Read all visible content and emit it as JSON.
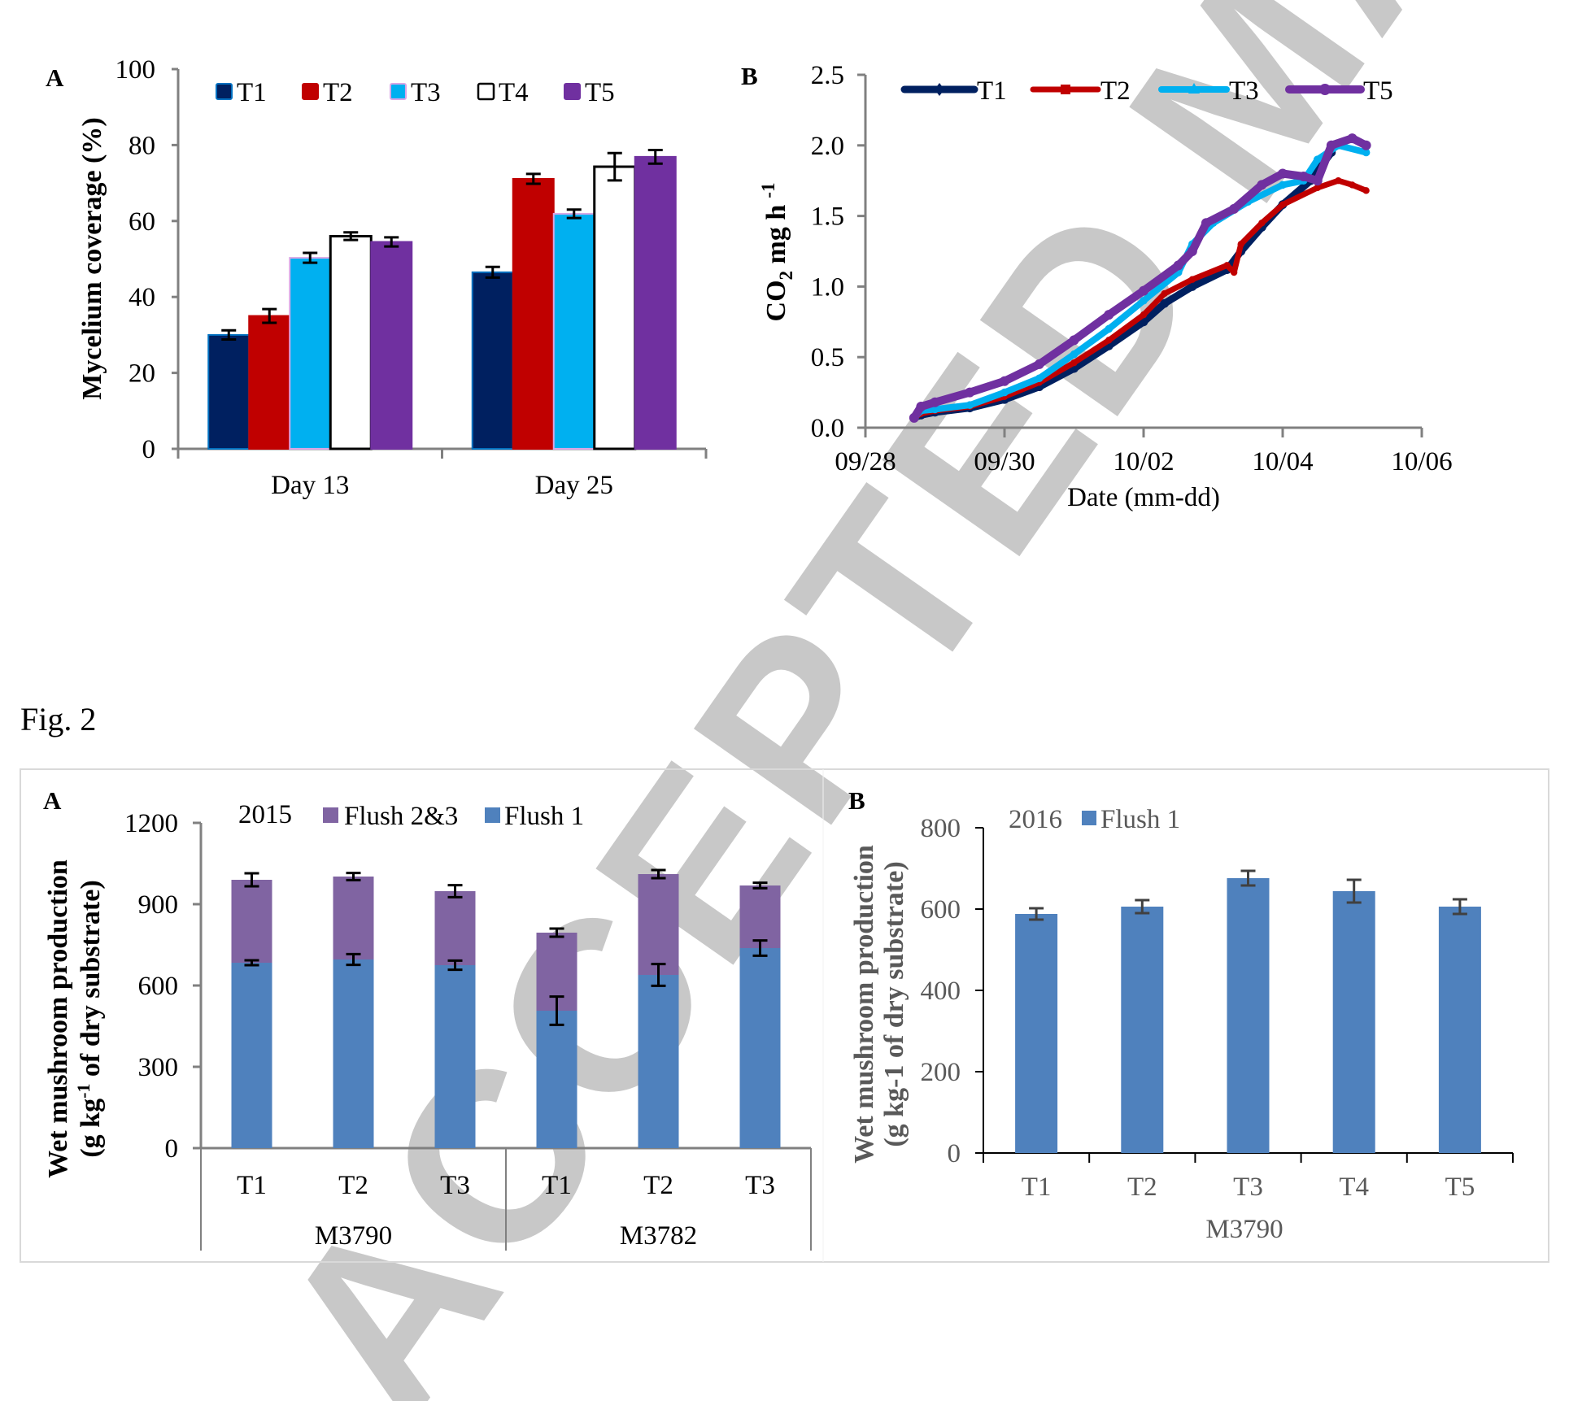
{
  "fig_label": "Fig. 2",
  "watermark_text": "ACCEPTED MANUSCRIPT",
  "colors": {
    "T1": "#002060",
    "T1_edge": "#0070c0",
    "T2": "#c00000",
    "T3": "#00b0f0",
    "T3_edge": "#d9a6e6",
    "T4": "#ffffff",
    "T5": "#7030a0",
    "flush1": "#4f81bd",
    "flush23": "#8064a2",
    "axis": "#808080",
    "watermark": "#c8c8c8"
  },
  "chart_data": [
    {
      "id": "top-A",
      "panel": "A",
      "type": "bar",
      "title": "",
      "xlabel": "",
      "ylabel": "Mycelium coverage (%)",
      "ylim": [
        0,
        100
      ],
      "yticks": [
        "0",
        "20",
        "40",
        "60",
        "80",
        "100"
      ],
      "ytick_values": [
        0,
        20,
        40,
        60,
        80,
        100
      ],
      "categories": [
        "Day 13",
        "Day 25"
      ],
      "legend": [
        "T1",
        "T2",
        "T3",
        "T4",
        "T5"
      ],
      "legend_position": "top",
      "grid": false,
      "series": [
        {
          "name": "T1",
          "values": [
            30.0,
            46.5
          ],
          "errors": [
            1.2,
            1.4
          ]
        },
        {
          "name": "T2",
          "values": [
            35.0,
            71.1
          ],
          "errors": [
            1.8,
            1.3
          ]
        },
        {
          "name": "T3",
          "values": [
            50.3,
            61.9
          ],
          "errors": [
            1.3,
            1.1
          ]
        },
        {
          "name": "T4",
          "values": [
            56.0,
            74.3
          ],
          "errors": [
            1.0,
            3.6
          ]
        },
        {
          "name": "T5",
          "values": [
            54.5,
            76.9
          ],
          "errors": [
            1.2,
            1.8
          ]
        }
      ]
    },
    {
      "id": "top-B",
      "panel": "B",
      "type": "line",
      "title": "",
      "xlabel": "Date (mm-dd)",
      "ylabel_main": "CO",
      "ylabel_sub": "2",
      "ylabel_rest": " mg h",
      "ylabel_sup": "-1",
      "ylabel": "CO2 mg h -1",
      "ylim": [
        0,
        2.5
      ],
      "yticks": [
        "0.0",
        "0.5",
        "1.0",
        "1.5",
        "2.0",
        "2.5"
      ],
      "ytick_values": [
        0,
        0.5,
        1.0,
        1.5,
        2.0,
        2.5
      ],
      "xlim_days_since_0928": [
        0,
        8
      ],
      "xticks": [
        "09/28",
        "09/30",
        "10/02",
        "10/04",
        "10/06"
      ],
      "xtick_values": [
        0,
        2,
        4,
        6,
        8
      ],
      "legend": [
        "T1",
        "T2",
        "T3",
        "T5"
      ],
      "legend_position": "top",
      "grid": false,
      "series": [
        {
          "name": "T1",
          "x": [
            0.7,
            0.8,
            1.0,
            1.5,
            2.0,
            2.5,
            3.0,
            3.5,
            4.0,
            4.3,
            4.7,
            5.2,
            5.4,
            5.7,
            6.0,
            6.4,
            6.7
          ],
          "y": [
            0.07,
            0.09,
            0.11,
            0.14,
            0.2,
            0.29,
            0.42,
            0.58,
            0.75,
            0.88,
            1.0,
            1.12,
            1.25,
            1.42,
            1.58,
            1.75,
            1.95
          ]
        },
        {
          "name": "T2",
          "x": [
            0.7,
            0.8,
            1.0,
            1.5,
            2.0,
            2.5,
            3.0,
            3.5,
            4.0,
            4.3,
            4.7,
            5.2,
            5.3,
            5.4,
            5.7,
            6.0,
            6.5,
            6.8,
            7.0,
            7.2
          ],
          "y": [
            0.07,
            0.1,
            0.12,
            0.15,
            0.22,
            0.32,
            0.46,
            0.62,
            0.8,
            0.95,
            1.05,
            1.15,
            1.1,
            1.3,
            1.45,
            1.58,
            1.7,
            1.75,
            1.72,
            1.68
          ]
        },
        {
          "name": "T3",
          "x": [
            0.7,
            0.8,
            1.0,
            1.5,
            2.0,
            2.5,
            3.0,
            3.5,
            4.0,
            4.5,
            4.7,
            5.0,
            5.5,
            6.0,
            6.3,
            6.5,
            6.8,
            7.2
          ],
          "y": [
            0.07,
            0.12,
            0.13,
            0.16,
            0.25,
            0.35,
            0.52,
            0.7,
            0.9,
            1.1,
            1.3,
            1.45,
            1.6,
            1.72,
            1.75,
            1.9,
            2.0,
            1.95
          ]
        },
        {
          "name": "T5",
          "x": [
            0.7,
            0.8,
            1.0,
            1.5,
            2.0,
            2.5,
            3.0,
            3.5,
            4.0,
            4.5,
            4.7,
            4.9,
            5.3,
            5.7,
            6.0,
            6.3,
            6.5,
            6.7,
            7.0,
            7.2
          ],
          "y": [
            0.07,
            0.15,
            0.18,
            0.25,
            0.33,
            0.45,
            0.62,
            0.8,
            0.97,
            1.15,
            1.25,
            1.45,
            1.55,
            1.72,
            1.8,
            1.78,
            1.75,
            2.0,
            2.05,
            2.0
          ]
        }
      ]
    },
    {
      "id": "bottom-A",
      "panel": "A",
      "type": "bar",
      "stacked": true,
      "title": "",
      "legend_title": "2015",
      "legend": [
        "Flush 2&3",
        "Flush 1"
      ],
      "legend_position": "top",
      "ylabel_line1": "Wet mushroom production",
      "ylabel_line2_pre": "(g kg",
      "ylabel_line2_sup": "-1",
      "ylabel_line2_post": " of dry substrate)",
      "ylabel": "Wet mushroom production (g kg-1 of dry substrate)",
      "ylim": [
        0,
        1200
      ],
      "yticks": [
        "0",
        "300",
        "600",
        "900",
        "1200"
      ],
      "ytick_values": [
        0,
        300,
        600,
        900,
        1200
      ],
      "categories": [
        "T1",
        "T2",
        "T3",
        "T1",
        "T2",
        "T3"
      ],
      "groups": [
        {
          "label": "M3790",
          "size": 3
        },
        {
          "label": "M3782",
          "size": 3
        }
      ],
      "grid": false,
      "series": [
        {
          "name": "Flush 1",
          "values": [
            684,
            696,
            675,
            507,
            639,
            738
          ],
          "errors": [
            9,
            20,
            17,
            52,
            40,
            28
          ]
        },
        {
          "name": "Flush 2&3",
          "values": [
            306,
            306,
            273,
            288,
            372,
            231
          ],
          "totals": [
            990,
            1002,
            948,
            795,
            1011,
            969
          ],
          "total_errors": [
            24,
            13,
            22,
            15,
            15,
            10
          ]
        }
      ]
    },
    {
      "id": "bottom-B",
      "panel": "B",
      "type": "bar",
      "title": "",
      "legend_title": "2016",
      "legend": [
        "Flush 1"
      ],
      "legend_position": "top",
      "ylabel_line1": "Wet mushroom production",
      "ylabel_line2": "(g kg-1 of dry substrate)",
      "ylabel": "Wet mushroom production (g kg-1 of dry substrate)",
      "xlabel": "M3790",
      "ylim": [
        0,
        800
      ],
      "yticks": [
        "0",
        "200",
        "400",
        "600",
        "800"
      ],
      "ytick_values": [
        0,
        200,
        400,
        600,
        800
      ],
      "categories": [
        "T1",
        "T2",
        "T3",
        "T4",
        "T5"
      ],
      "grid": false,
      "series": [
        {
          "name": "Flush 1",
          "values": [
            588,
            606,
            676,
            644,
            606
          ],
          "errors": [
            14,
            16,
            18,
            28,
            18
          ]
        }
      ]
    }
  ]
}
